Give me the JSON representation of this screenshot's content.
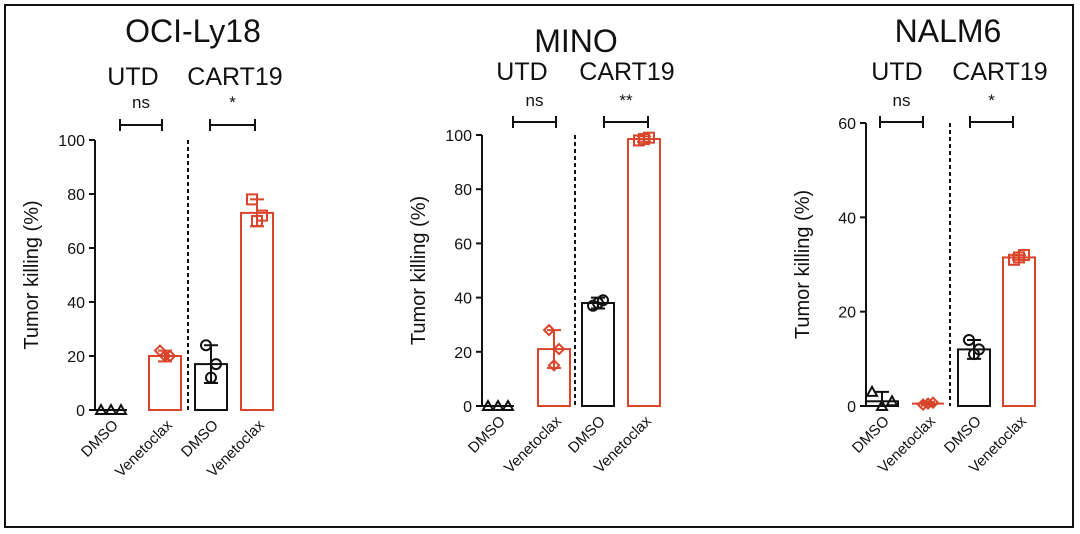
{
  "colors": {
    "control": "#111111",
    "venetoclax": "#d9452b",
    "axis": "#111111"
  },
  "chart_data": [
    {
      "type": "bar",
      "title": "OCI-Ly18",
      "ylabel": "Tumor killing (%)",
      "ylim": [
        0,
        100
      ],
      "yticks": [
        0,
        20,
        40,
        60,
        80,
        100
      ],
      "groups": [
        {
          "label": "UTD",
          "significance": "ns"
        },
        {
          "label": "CART19",
          "significance": "*"
        }
      ],
      "categories": [
        "DMSO",
        "Venetoclax",
        "DMSO",
        "Venetoclax"
      ],
      "values": [
        0,
        20,
        17,
        73
      ],
      "errors": [
        0,
        2,
        7,
        5
      ],
      "points": [
        [
          0,
          0,
          0
        ],
        [
          22,
          20,
          20
        ],
        [
          24,
          12,
          17
        ],
        [
          78,
          70,
          72
        ]
      ],
      "markers": [
        "triangle",
        "diamond",
        "circle",
        "square"
      ]
    },
    {
      "type": "bar",
      "title": "MINO",
      "ylabel": "Tumor killing (%)",
      "ylim": [
        0,
        100
      ],
      "yticks": [
        0,
        20,
        40,
        60,
        80,
        100
      ],
      "groups": [
        {
          "label": "UTD",
          "significance": "ns"
        },
        {
          "label": "CART19",
          "significance": "**"
        }
      ],
      "categories": [
        "DMSO",
        "Venetoclax",
        "DMSO",
        "Venetoclax"
      ],
      "values": [
        0,
        21,
        38,
        98.5
      ],
      "errors": [
        0,
        7,
        2,
        1
      ],
      "points": [
        [
          0,
          0,
          0
        ],
        [
          28,
          15,
          21
        ],
        [
          37,
          38,
          39
        ],
        [
          98,
          98.5,
          99
        ]
      ],
      "markers": [
        "triangle",
        "diamond",
        "circle",
        "square"
      ]
    },
    {
      "type": "bar",
      "title": "NALM6",
      "ylabel": "Tumor killing (%)",
      "ylim": [
        0,
        60
      ],
      "yticks": [
        0,
        20,
        40,
        60
      ],
      "groups": [
        {
          "label": "UTD",
          "significance": "ns"
        },
        {
          "label": "CART19",
          "significance": "*"
        }
      ],
      "categories": [
        "DMSO",
        "Venetoclax",
        "DMSO",
        "Venetoclax"
      ],
      "values": [
        1,
        0.5,
        12,
        31.5
      ],
      "errors": [
        2,
        0.4,
        2,
        0.5
      ],
      "points": [
        [
          3,
          0,
          1
        ],
        [
          0.3,
          0.5,
          0.7
        ],
        [
          14,
          11,
          12
        ],
        [
          31,
          31.5,
          32
        ]
      ],
      "markers": [
        "triangle",
        "diamond",
        "circle",
        "square"
      ]
    }
  ]
}
